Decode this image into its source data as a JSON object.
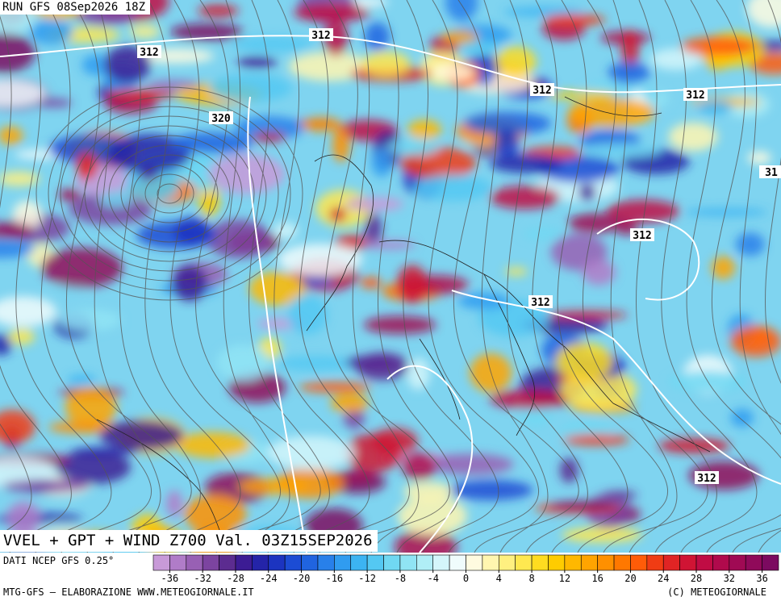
{
  "header": "RUN GFS 08Sep2026 18Z",
  "title": "VVEL + GPT + WIND Z700 Val. 03Z15SEP2026",
  "source": "DATI NCEP GFS 0.25°",
  "footer_left": "MTG-GFS — ELABORAZIONE WWW.METEOGIORNALE.IT",
  "footer_right": "(C) METEOGIORNALE",
  "contour_labels": [
    "312",
    "312",
    "320",
    "312",
    "312",
    "31",
    "312",
    "312",
    "312"
  ],
  "colorbar": {
    "range": [
      -38,
      38
    ],
    "ticks": [
      -36,
      -32,
      -28,
      -24,
      -20,
      -16,
      -12,
      -8,
      -4,
      0,
      4,
      8,
      12,
      16,
      20,
      24,
      28,
      32,
      36
    ],
    "colors": [
      "#c89ad8",
      "#b07cc8",
      "#9860b4",
      "#7c44a0",
      "#5c2c90",
      "#3c1c94",
      "#2424a8",
      "#1c34c0",
      "#1c4cd4",
      "#2064e0",
      "#2880ea",
      "#309cf0",
      "#3cb4f2",
      "#54c8f2",
      "#70d8f2",
      "#90e4f4",
      "#b0eef6",
      "#d4f6fa",
      "#f0fcfc",
      "#fffbe0",
      "#fff6b0",
      "#fff080",
      "#ffe850",
      "#ffdc20",
      "#ffcc00",
      "#ffb800",
      "#ffa400",
      "#ff9000",
      "#ff7800",
      "#ff5c08",
      "#f03c14",
      "#e02424",
      "#d01434",
      "#c00c44",
      "#b00a4c",
      "#a00a54",
      "#900a5a",
      "#7c0a60"
    ]
  }
}
